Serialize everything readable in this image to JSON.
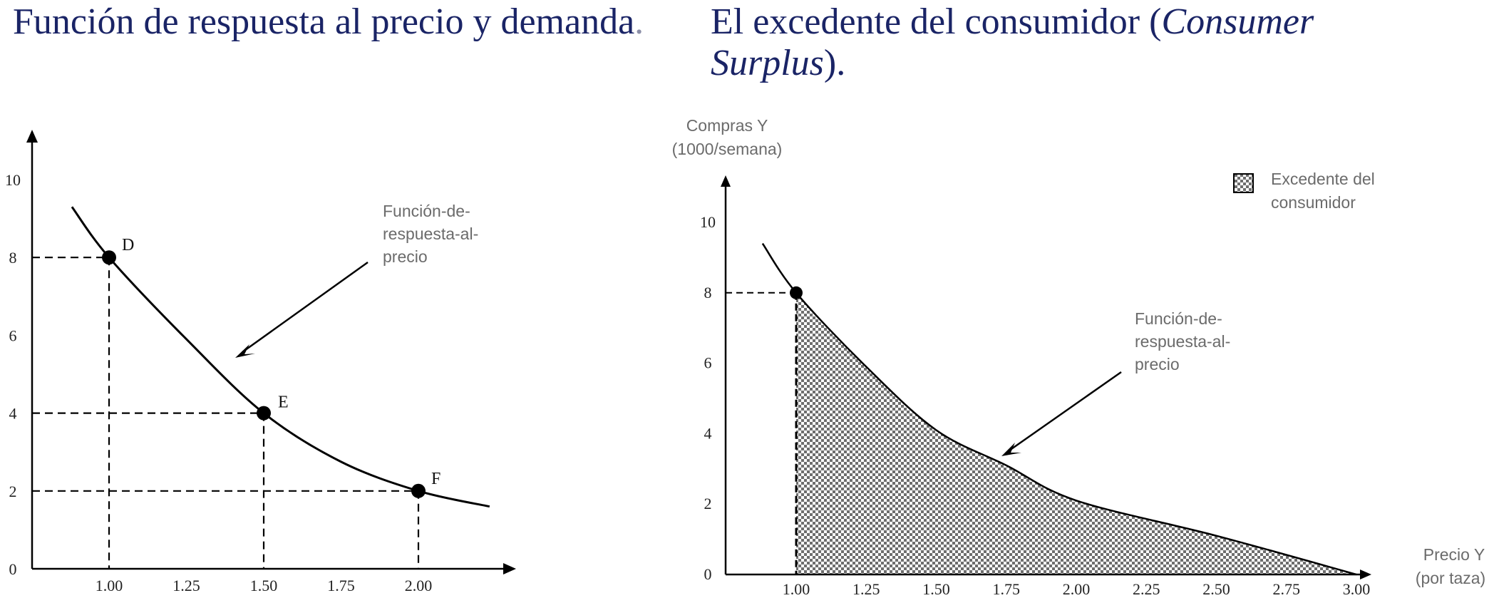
{
  "left": {
    "title_main": "Función de respuesta al precio y demanda",
    "title_dot": ".",
    "annotation": [
      "Función-de-",
      "respuesta-al-",
      "precio"
    ]
  },
  "right": {
    "title_pre": "El excedente del consumidor (",
    "title_italic_1": "Consumer",
    "title_italic_2": "Surplus",
    "title_post": ").",
    "annotation": [
      "Función-de-",
      "respuesta-al-",
      "precio"
    ],
    "legend": [
      "Excedente del",
      "consumidor"
    ]
  },
  "chart_data": [
    {
      "type": "line",
      "title": "Función de respuesta al precio y demanda.",
      "xlabel": "",
      "ylabel": "",
      "xlim": [
        0.7,
        2.3
      ],
      "ylim": [
        0,
        10
      ],
      "x_ticks": [
        "1.00",
        "1.25",
        "1.50",
        "1.75",
        "2.00"
      ],
      "y_ticks": [
        "0",
        "2",
        "4",
        "6",
        "8",
        "10"
      ],
      "curve": {
        "x": [
          0.88,
          1.0,
          1.25,
          1.5,
          1.75,
          2.0,
          2.23
        ],
        "y": [
          9.3,
          8.0,
          5.9,
          4.0,
          2.75,
          2.0,
          1.6
        ]
      },
      "points": [
        {
          "label": "D",
          "x": 1.0,
          "y": 8
        },
        {
          "label": "E",
          "x": 1.5,
          "y": 4
        },
        {
          "label": "F",
          "x": 2.0,
          "y": 2
        }
      ],
      "grid": false,
      "color": "#000000"
    },
    {
      "type": "area",
      "title": "El excedente del consumidor (Consumer Surplus).",
      "xlabel": "Precio Y (por taza)",
      "ylabel": "Compras Y (1000/semana)",
      "xlim": [
        0.75,
        3.05
      ],
      "ylim": [
        0,
        10.5
      ],
      "x_ticks": [
        "1.00",
        "1.25",
        "1.50",
        "1.75",
        "2.00",
        "2.25",
        "2.50",
        "2.75",
        "3.00"
      ],
      "y_ticks": [
        "0",
        "2",
        "4",
        "6",
        "8",
        "10"
      ],
      "curve": {
        "x": [
          0.88,
          1.0,
          1.25,
          1.5,
          1.75,
          2.0,
          2.5,
          3.0
        ],
        "y": [
          9.4,
          8.0,
          5.9,
          4.1,
          3.1,
          2.1,
          1.1,
          0.0
        ]
      },
      "surplus_region": {
        "x_from": 1.0,
        "x_to": 3.0
      },
      "points": [
        {
          "label": "",
          "x": 1.0,
          "y": 8
        }
      ],
      "legend": [
        "Excedente del consumidor"
      ],
      "legend_position": "top-right",
      "grid": false,
      "fill_color": "#777777"
    }
  ]
}
